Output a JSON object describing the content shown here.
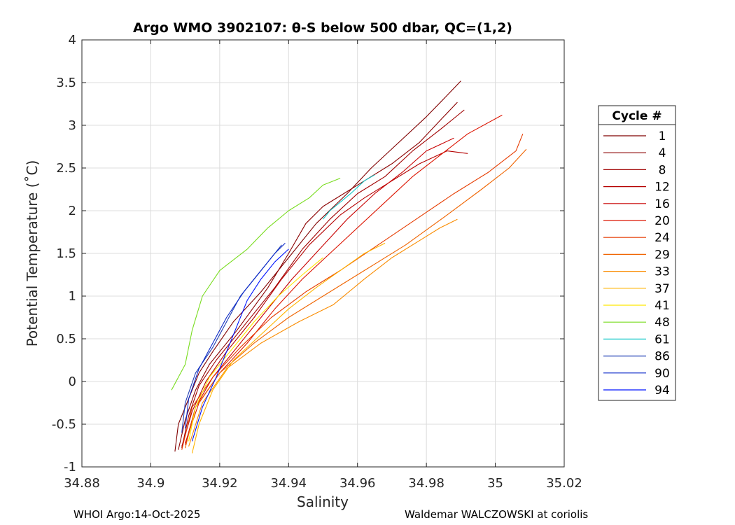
{
  "footer": {
    "left": "WHOI Argo:14-Oct-2025",
    "right": "Waldemar WALCZOWSKI at coriolis"
  },
  "chart_data": {
    "type": "line",
    "title": "Argo WMO 3902107: θ-S below 500 dbar,  QC=(1,2)",
    "xlabel": "Salinity",
    "ylabel": "Potential Temperature (˚C)",
    "xlim": [
      34.88,
      35.02
    ],
    "ylim": [
      -1,
      4
    ],
    "xticks": [
      34.88,
      34.9,
      34.92,
      34.94,
      34.96,
      34.98,
      35,
      35.02
    ],
    "xtick_labels": [
      "34.88",
      "34.9",
      "34.92",
      "34.94",
      "34.96",
      "34.98",
      "35",
      "35.02"
    ],
    "yticks": [
      -1,
      -0.5,
      0,
      0.5,
      1,
      1.5,
      2,
      2.5,
      3,
      3.5,
      4
    ],
    "ytick_labels": [
      "-1",
      "-0.5",
      "0",
      "0.5",
      "1",
      "1.5",
      "2",
      "2.5",
      "3",
      "3.5",
      "4"
    ],
    "grid": true,
    "legend": {
      "title": "Cycle #",
      "placement": "outside-right"
    },
    "series": [
      {
        "name": "1",
        "color": "#800000",
        "x": [
          34.907,
          34.908,
          34.911,
          34.914,
          34.918,
          34.924,
          34.932,
          34.94,
          34.948,
          34.957,
          34.964,
          34.972,
          34.98,
          34.986,
          34.99
        ],
        "y": [
          -0.82,
          -0.5,
          -0.2,
          0.1,
          0.35,
          0.7,
          1.05,
          1.45,
          1.85,
          2.2,
          2.5,
          2.8,
          3.1,
          3.35,
          3.52
        ]
      },
      {
        "name": "4",
        "color": "#8b0000",
        "x": [
          34.908,
          34.91,
          34.913,
          34.917,
          34.925,
          34.934,
          34.94,
          34.945,
          34.95,
          34.956,
          34.962,
          34.97,
          34.978,
          34.985,
          34.989
        ],
        "y": [
          -0.8,
          -0.45,
          -0.1,
          0.2,
          0.6,
          1.1,
          1.5,
          1.85,
          2.05,
          2.2,
          2.35,
          2.55,
          2.8,
          3.1,
          3.27
        ]
      },
      {
        "name": "8",
        "color": "#a00000",
        "x": [
          34.909,
          34.911,
          34.914,
          34.919,
          34.927,
          34.936,
          34.944,
          34.952,
          34.96,
          34.968,
          34.976,
          34.984,
          34.991
        ],
        "y": [
          -0.78,
          -0.4,
          -0.05,
          0.25,
          0.65,
          1.1,
          1.55,
          1.9,
          2.2,
          2.4,
          2.7,
          2.95,
          3.18
        ]
      },
      {
        "name": "12",
        "color": "#b40000",
        "x": [
          34.909,
          34.912,
          34.916,
          34.922,
          34.93,
          34.938,
          34.946,
          34.955,
          34.962,
          34.97,
          34.978,
          34.986,
          34.992
        ],
        "y": [
          -0.76,
          -0.35,
          0.0,
          0.35,
          0.75,
          1.2,
          1.6,
          1.95,
          2.15,
          2.35,
          2.55,
          2.7,
          2.67
        ]
      },
      {
        "name": "16",
        "color": "#c80000",
        "x": [
          34.91,
          34.913,
          34.918,
          34.925,
          34.933,
          34.941,
          34.949,
          34.957,
          34.965,
          34.973,
          34.98,
          34.988
        ],
        "y": [
          -0.74,
          -0.3,
          0.05,
          0.4,
          0.8,
          1.2,
          1.55,
          1.9,
          2.2,
          2.45,
          2.7,
          2.85
        ]
      },
      {
        "name": "20",
        "color": "#dc1400",
        "x": [
          34.91,
          34.914,
          34.92,
          34.928,
          34.936,
          34.944,
          34.952,
          34.96,
          34.968,
          34.976,
          34.984,
          34.992,
          35.002
        ],
        "y": [
          -0.72,
          -0.25,
          0.1,
          0.45,
          0.85,
          1.2,
          1.5,
          1.8,
          2.1,
          2.4,
          2.65,
          2.9,
          3.12
        ]
      },
      {
        "name": "24",
        "color": "#e63c00",
        "x": [
          34.909,
          34.912,
          34.918,
          34.926,
          34.935,
          34.945,
          34.955,
          34.966,
          34.977,
          34.988,
          34.998,
          35.006,
          35.008
        ],
        "y": [
          -0.8,
          -0.3,
          0.05,
          0.4,
          0.75,
          1.05,
          1.3,
          1.6,
          1.9,
          2.2,
          2.45,
          2.7,
          2.9
        ]
      },
      {
        "name": "29",
        "color": "#f06400",
        "x": [
          34.91,
          34.913,
          34.92,
          34.93,
          34.94,
          34.95,
          34.962,
          34.974,
          34.986,
          34.996,
          35.004,
          35.009
        ],
        "y": [
          -0.78,
          -0.3,
          0.1,
          0.45,
          0.75,
          1.0,
          1.3,
          1.6,
          1.95,
          2.25,
          2.5,
          2.72
        ]
      },
      {
        "name": "33",
        "color": "#fa8c00",
        "x": [
          34.911,
          34.915,
          34.922,
          34.932,
          34.943,
          34.953,
          34.962,
          34.97,
          34.978,
          34.984,
          34.989
        ],
        "y": [
          -0.76,
          -0.25,
          0.15,
          0.45,
          0.7,
          0.9,
          1.2,
          1.45,
          1.65,
          1.8,
          1.9
        ]
      },
      {
        "name": "37",
        "color": "#ffb400",
        "x": [
          34.912,
          34.914,
          34.918,
          34.924,
          34.932,
          34.94,
          34.948,
          34.955,
          34.962,
          34.968
        ],
        "y": [
          -0.84,
          -0.5,
          -0.1,
          0.25,
          0.55,
          0.85,
          1.1,
          1.3,
          1.5,
          1.62
        ]
      },
      {
        "name": "41",
        "color": "#ffe600",
        "x": [
          34.911,
          34.913,
          34.917,
          34.923,
          34.93,
          34.937,
          34.944,
          34.95
        ],
        "y": [
          -0.7,
          -0.3,
          0.05,
          0.35,
          0.7,
          1.0,
          1.25,
          1.45
        ]
      },
      {
        "name": "48",
        "color": "#78dc1e",
        "x": [
          34.906,
          34.91,
          34.912,
          34.915,
          34.92,
          34.928,
          34.934,
          34.94,
          34.946,
          34.95,
          34.955
        ],
        "y": [
          -0.1,
          0.2,
          0.6,
          1.0,
          1.3,
          1.55,
          1.8,
          2.0,
          2.15,
          2.3,
          2.38
        ]
      },
      {
        "name": "61",
        "color": "#14c8c8",
        "x": [
          34.95,
          34.952,
          34.955,
          34.958,
          34.962,
          34.965
        ],
        "y": [
          1.9,
          2.0,
          2.1,
          2.2,
          2.35,
          2.42
        ]
      },
      {
        "name": "86",
        "color": "#1e3cb4",
        "x": [
          34.909,
          34.91,
          34.913,
          34.918,
          34.922,
          34.926,
          34.93,
          34.934,
          34.938
        ],
        "y": [
          -0.6,
          -0.25,
          0.1,
          0.4,
          0.7,
          1.0,
          1.2,
          1.4,
          1.6
        ]
      },
      {
        "name": "90",
        "color": "#0a28c8",
        "x": [
          34.91,
          34.911,
          34.914,
          34.918,
          34.922,
          34.927,
          34.932,
          34.936,
          34.939
        ],
        "y": [
          -0.55,
          -0.2,
          0.15,
          0.45,
          0.75,
          1.05,
          1.3,
          1.5,
          1.62
        ]
      },
      {
        "name": "94",
        "color": "#0014ff",
        "x": [
          34.912,
          34.915,
          34.919,
          34.922,
          34.925,
          34.928,
          34.932,
          34.936,
          34.94
        ],
        "y": [
          -0.7,
          -0.3,
          0.05,
          0.35,
          0.65,
          0.95,
          1.2,
          1.4,
          1.55
        ]
      }
    ]
  }
}
